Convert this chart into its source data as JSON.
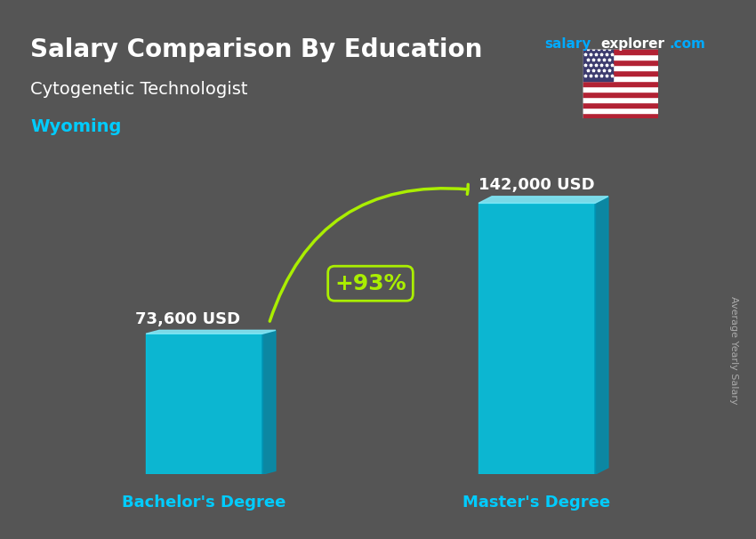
{
  "title": "Salary Comparison By Education",
  "subtitle": "Cytogenetic Technologist",
  "location": "Wyoming",
  "categories": [
    "Bachelor's Degree",
    "Master's Degree"
  ],
  "values": [
    73600,
    142000
  ],
  "value_labels": [
    "73,600 USD",
    "142,000 USD"
  ],
  "pct_change": "+93%",
  "bar_color_face": "#00C8E8",
  "bar_color_top": "#80E8F8",
  "bar_color_side": "#0090B0",
  "background_color": "#555555",
  "title_color": "#FFFFFF",
  "subtitle_color": "#FFFFFF",
  "location_color": "#00CCFF",
  "label_color": "#FFFFFF",
  "xlabel_color": "#00CCFF",
  "salary_label_color": "#FFFFFF",
  "pct_color": "#AAEE00",
  "arrow_color": "#AAEE00",
  "site_salary_color": "#00AAFF",
  "site_explorer_color": "#FFFFFF",
  "site_com_color": "#00AAFF",
  "rotated_label": "Average Yearly Salary",
  "rotated_label_color": "#AAAAAA",
  "ylim": [
    0,
    175000
  ],
  "bar_width": 0.35
}
